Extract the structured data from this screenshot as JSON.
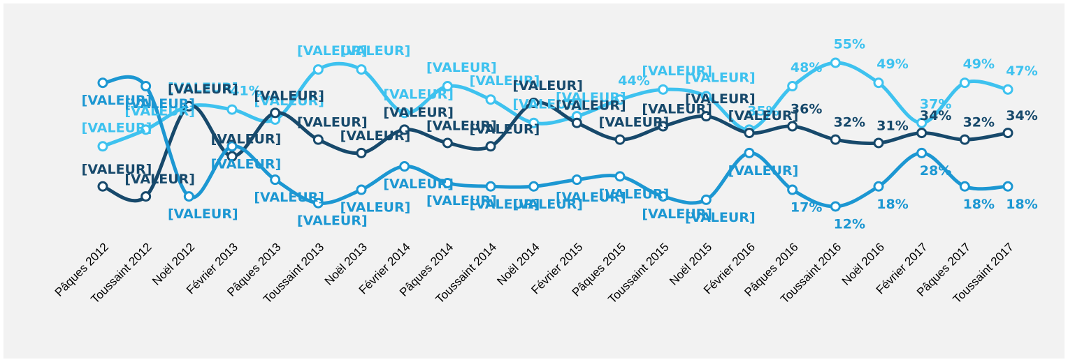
{
  "chart_data": {
    "type": "line",
    "categories": [
      "Pâques 2012",
      "Toussaint 2012",
      "Noël 2012",
      "Février 2013",
      "Pâques 2013",
      "Toussaint 2013",
      "Noël 2013",
      "Février 2014",
      "Pâques 2014",
      "Toussaint 2014",
      "Noël 2014",
      "Février 2015",
      "Pâques 2015",
      "Toussaint 2015",
      "Noël 2015",
      "Février 2016",
      "Pâques 2016",
      "Toussaint 2016",
      "Noël 2016",
      "Février 2017",
      "Pâques 2017",
      "Toussaint 2017"
    ],
    "series": [
      {
        "color": "#3ec2ef",
        "values": [
          30,
          35,
          42,
          41,
          38,
          53,
          53,
          40,
          48,
          44,
          37,
          39,
          44,
          47,
          45,
          35,
          48,
          55,
          49,
          37,
          49,
          47
        ],
        "value_labels": [
          "[VALEUR]",
          "[VALEUR]",
          "[VALEUR]",
          "41%",
          "[VALEUR]",
          "[VALEUR]",
          "[VALEUR]",
          "[VALEUR]",
          "[VALEUR]",
          "[VALEUR]",
          "[VALEUR]",
          "[VALEUR]",
          "44%",
          "[VALEUR]",
          "[VALEUR]",
          "35%",
          "48%",
          "55%",
          "49%",
          "37%",
          "49%",
          "47%"
        ]
      },
      {
        "color": "#17496b",
        "values": [
          18,
          15,
          42,
          27,
          40,
          32,
          28,
          35,
          31,
          30,
          43,
          37,
          32,
          36,
          39,
          34,
          36,
          32,
          31,
          34,
          32,
          34
        ],
        "value_labels": [
          "[VALEUR]",
          "[VALEUR]",
          "[VALEUR]",
          "[VALEUR]",
          "[VALEUR]",
          "[VALEUR]",
          "[VALEUR]",
          "[VALEUR]",
          "[VALEUR]",
          "[VALEUR]",
          "[VALEUR]",
          "[VALEUR]",
          "[VALEUR]",
          "[VALEUR]",
          "[VALEUR]",
          "[VALEUR]",
          "36%",
          "32%",
          "31%",
          "34%",
          "32%",
          "34%"
        ]
      },
      {
        "color": "#1c97d2",
        "values": [
          49,
          48,
          15,
          30,
          20,
          13,
          17,
          24,
          19,
          18,
          18,
          20,
          21,
          15,
          14,
          28,
          17,
          12,
          18,
          28,
          18,
          18
        ],
        "value_labels": [
          "[VALEUR]",
          "[VALEUR]",
          "[VALEUR]",
          "[VALEUR]",
          "[VALEUR]",
          "[VALEUR]",
          "[VALEUR]",
          "[VALEUR]",
          "[VALEUR]",
          "[VALEUR]",
          "[VALEUR]",
          "[VALEUR]",
          "[VALEUR]",
          "[VALEUR]",
          "[VALEUR]",
          "[VALEUR]",
          "17%",
          "12%",
          "18%",
          "28%",
          "18%",
          "18%"
        ]
      }
    ]
  }
}
